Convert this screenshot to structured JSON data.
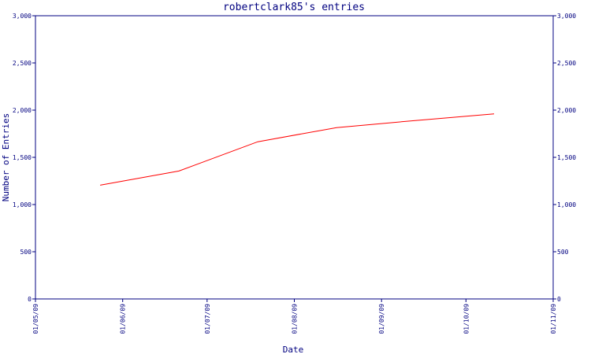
{
  "chart_data": {
    "type": "line",
    "title": "robertclark85's entries",
    "xlabel": "Date",
    "ylabel": "Number of Entries",
    "x_ticks": [
      "01/05/09",
      "01/06/09",
      "01/07/09",
      "01/08/09",
      "01/09/09",
      "01/10/09",
      "01/11/09"
    ],
    "x_range": [
      "2009-05-01",
      "2009-11-01"
    ],
    "ylim": [
      0,
      3000
    ],
    "y_ticks": [
      0,
      500,
      1000,
      1500,
      2000,
      2500,
      3000
    ],
    "y_tick_labels": [
      "0",
      "500",
      "1,000",
      "1,500",
      "2,000",
      "2,500",
      "3,000"
    ],
    "right_axis": true,
    "grid": false,
    "series": [
      {
        "x": [
          "2009-05-24",
          "2009-06-21",
          "2009-07-19",
          "2009-08-16",
          "2009-09-13",
          "2009-10-11"
        ],
        "values": [
          1205,
          1355,
          1665,
          1815,
          1890,
          1960
        ]
      }
    ],
    "colors": {
      "axis": "#000080",
      "line": "#ff0000",
      "background": "#ffffff"
    }
  }
}
